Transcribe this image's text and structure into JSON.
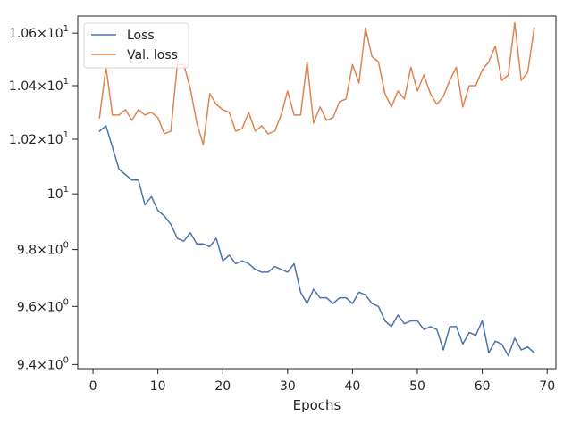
{
  "chart_data": {
    "type": "line",
    "title": "",
    "xlabel": "Epochs",
    "ylabel": "",
    "xlim": [
      -2.35,
      71.35
    ],
    "ylim": [
      9.3859,
      10.6659
    ],
    "yscale": "log",
    "grid": false,
    "legend_position": "top-left",
    "x_ticks": [
      {
        "value": 0,
        "label": "0"
      },
      {
        "value": 10,
        "label": "10"
      },
      {
        "value": 20,
        "label": "20"
      },
      {
        "value": 30,
        "label": "30"
      },
      {
        "value": 40,
        "label": "40"
      },
      {
        "value": 50,
        "label": "50"
      },
      {
        "value": 60,
        "label": "60"
      },
      {
        "value": 70,
        "label": "70"
      }
    ],
    "y_ticks": [
      {
        "value": 9.4,
        "mant": "9.4",
        "sup": "0"
      },
      {
        "value": 9.6,
        "mant": "9.6",
        "sup": "0"
      },
      {
        "value": 9.8,
        "mant": "9.8",
        "sup": "0"
      },
      {
        "value": 10.0,
        "mant": "10",
        "sup": "1"
      },
      {
        "value": 10.2,
        "mant": "1.02",
        "sup": "1"
      },
      {
        "value": 10.4,
        "mant": "1.04",
        "sup": "1"
      },
      {
        "value": 10.6,
        "mant": "1.06",
        "sup": "1"
      }
    ],
    "x": [
      1,
      2,
      3,
      4,
      5,
      6,
      7,
      8,
      9,
      10,
      11,
      12,
      13,
      14,
      15,
      16,
      17,
      18,
      19,
      20,
      21,
      22,
      23,
      24,
      25,
      26,
      27,
      28,
      29,
      30,
      31,
      32,
      33,
      34,
      35,
      36,
      37,
      38,
      39,
      40,
      41,
      42,
      43,
      44,
      45,
      46,
      47,
      48,
      49,
      50,
      51,
      52,
      53,
      54,
      55,
      56,
      57,
      58,
      59,
      60,
      61,
      62,
      63,
      64,
      65,
      66,
      67,
      68
    ],
    "series": [
      {
        "name": "Loss",
        "color": "#4c72b0",
        "values": [
          10.23,
          10.25,
          10.17,
          10.09,
          10.07,
          10.05,
          10.05,
          9.96,
          9.99,
          9.94,
          9.92,
          9.89,
          9.84,
          9.83,
          9.86,
          9.82,
          9.82,
          9.81,
          9.84,
          9.76,
          9.78,
          9.75,
          9.76,
          9.75,
          9.73,
          9.72,
          9.72,
          9.74,
          9.73,
          9.72,
          9.75,
          9.65,
          9.61,
          9.66,
          9.63,
          9.63,
          9.61,
          9.63,
          9.63,
          9.61,
          9.65,
          9.64,
          9.61,
          9.6,
          9.55,
          9.53,
          9.57,
          9.54,
          9.55,
          9.55,
          9.52,
          9.53,
          9.52,
          9.45,
          9.53,
          9.53,
          9.47,
          9.51,
          9.5,
          9.55,
          9.44,
          9.48,
          9.47,
          9.43,
          9.49,
          9.45,
          9.46,
          9.44
        ]
      },
      {
        "name": "Val. loss",
        "color": "#dd8452",
        "values": [
          10.28,
          10.47,
          10.29,
          10.29,
          10.31,
          10.27,
          10.31,
          10.29,
          10.3,
          10.28,
          10.22,
          10.23,
          10.48,
          10.48,
          10.39,
          10.26,
          10.18,
          10.37,
          10.33,
          10.31,
          10.3,
          10.23,
          10.24,
          10.3,
          10.23,
          10.25,
          10.22,
          10.23,
          10.29,
          10.38,
          10.29,
          10.29,
          10.49,
          10.26,
          10.32,
          10.27,
          10.28,
          10.34,
          10.35,
          10.48,
          10.41,
          10.62,
          10.51,
          10.49,
          10.37,
          10.32,
          10.38,
          10.35,
          10.47,
          10.38,
          10.44,
          10.37,
          10.33,
          10.36,
          10.42,
          10.47,
          10.32,
          10.4,
          10.4,
          10.46,
          10.49,
          10.55,
          10.42,
          10.44,
          10.64,
          10.42,
          10.45,
          10.62
        ]
      }
    ]
  }
}
